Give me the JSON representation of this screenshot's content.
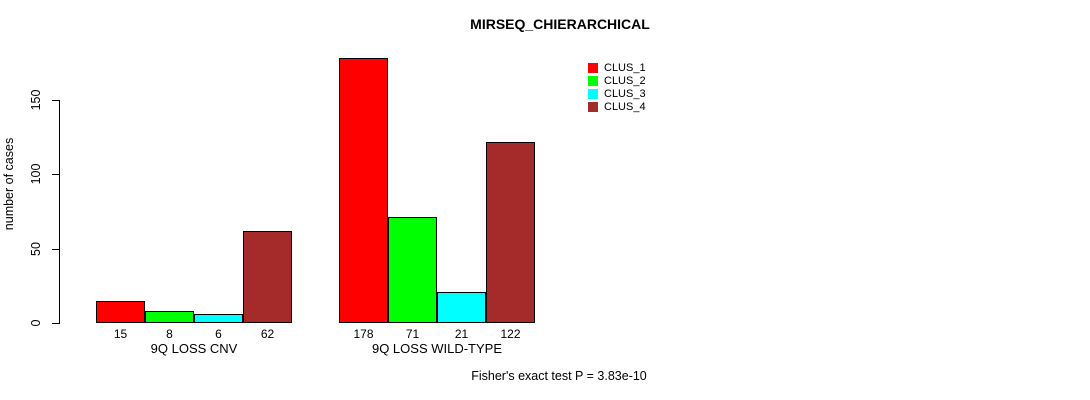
{
  "chart_data": {
    "type": "bar",
    "title": "MIRSEQ_CHIERARCHICAL",
    "xlabel": "",
    "ylabel": "number of cases",
    "yticks": [
      0,
      50,
      100,
      150
    ],
    "ylim": [
      0,
      178
    ],
    "grid": false,
    "legend_position": "top-right",
    "categories": [
      "9Q LOSS CNV",
      "9Q LOSS WILD-TYPE"
    ],
    "series": [
      {
        "name": "CLUS_1",
        "color": "#ff0000",
        "values": [
          15,
          178
        ]
      },
      {
        "name": "CLUS_2",
        "color": "#00ff00",
        "values": [
          8,
          71
        ]
      },
      {
        "name": "CLUS_3",
        "color": "#00ffff",
        "values": [
          6,
          21
        ]
      },
      {
        "name": "CLUS_4",
        "color": "#a52a2a",
        "values": [
          62,
          122
        ]
      }
    ],
    "bar_value_labels": [
      [
        "15",
        "8",
        "6",
        "62"
      ],
      [
        "178",
        "71",
        "21",
        "122"
      ]
    ],
    "annotation": "Fisher's exact test P = 3.83e-10"
  }
}
